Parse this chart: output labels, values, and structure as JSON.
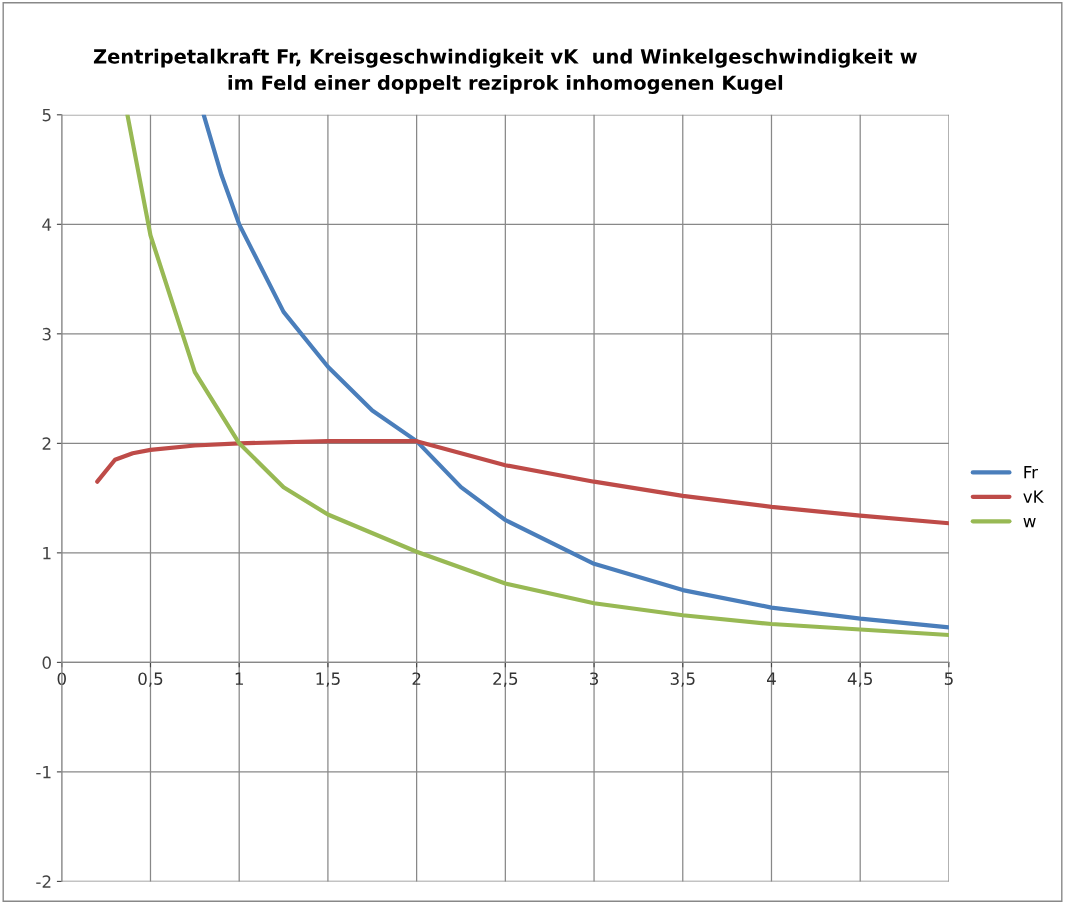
{
  "chart_data": {
    "type": "line",
    "title": "Zentripetalkraft Fr, Kreisgeschwindigkeit vK  und Winkelgeschwindigkeit w\nim Feld einer doppelt reziprok inhomogenen Kugel",
    "series": [
      {
        "name": "Fr",
        "color": "#4a7ebb",
        "x": [
          0.8,
          0.9,
          1,
          1.25,
          1.5,
          1.75,
          2,
          2.25,
          2.5,
          3,
          3.5,
          4,
          4.5,
          5
        ],
        "values": [
          5,
          4.45,
          4,
          3.2,
          2.7,
          2.3,
          2.02,
          1.6,
          1.3,
          0.9,
          0.66,
          0.5,
          0.4,
          0.32
        ]
      },
      {
        "name": "vK",
        "color": "#be4b48",
        "x": [
          0.2,
          0.3,
          0.4,
          0.5,
          0.75,
          1,
          1.5,
          2,
          2.5,
          3,
          3.5,
          4,
          4.5,
          5
        ],
        "values": [
          1.65,
          1.85,
          1.91,
          1.94,
          1.98,
          2.0,
          2.02,
          2.02,
          1.8,
          1.65,
          1.52,
          1.42,
          1.34,
          1.27
        ]
      },
      {
        "name": "w",
        "color": "#98b954",
        "x": [
          0.37,
          0.5,
          0.75,
          1,
          1.25,
          1.5,
          2,
          2.5,
          3,
          3.5,
          4,
          4.5,
          5
        ],
        "values": [
          5,
          3.9,
          2.65,
          2.0,
          1.6,
          1.35,
          1.01,
          0.72,
          0.54,
          0.43,
          0.35,
          0.3,
          0.25
        ]
      }
    ],
    "xlim": [
      0,
      5
    ],
    "ylim": [
      -2,
      5
    ],
    "xticks": [
      0,
      {
        "value": 0.5,
        "label": "0,5"
      },
      1,
      {
        "value": 1.5,
        "label": "1,5"
      },
      2,
      {
        "value": 2.5,
        "label": "2,5"
      },
      3,
      {
        "value": 3.5,
        "label": "3,5"
      },
      4,
      {
        "value": 4.5,
        "label": "4,5"
      },
      5
    ],
    "yticks": [
      -2,
      -1,
      0,
      1,
      2,
      3,
      4,
      5
    ],
    "grid": true,
    "legend": "right",
    "marker": "none",
    "line_style": "solid"
  }
}
